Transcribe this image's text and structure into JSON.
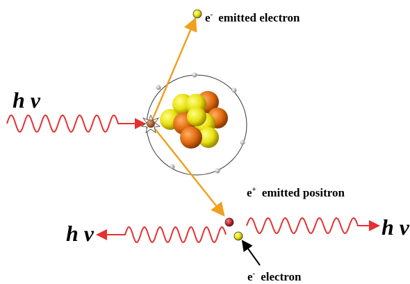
{
  "photons": [
    "h ν",
    "h ν",
    "h ν"
  ],
  "particles": [
    {
      "symbol": "e",
      "charge": "-",
      "text": "emitted electron"
    },
    {
      "symbol": "e",
      "charge": "+",
      "text": "emitted positron"
    },
    {
      "symbol": "e",
      "charge": "-",
      "text": "electron"
    }
  ]
}
